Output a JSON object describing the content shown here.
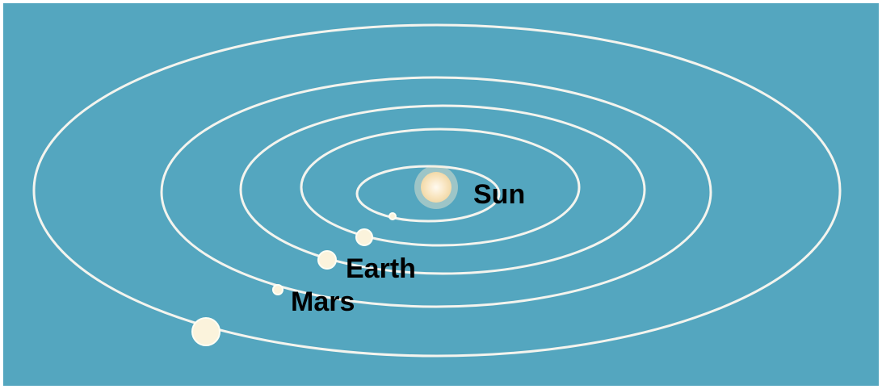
{
  "nodes": [
    {
      "label": "Sun"
    },
    {
      "label": "Earth"
    },
    {
      "label": "Mars"
    }
  ]
}
